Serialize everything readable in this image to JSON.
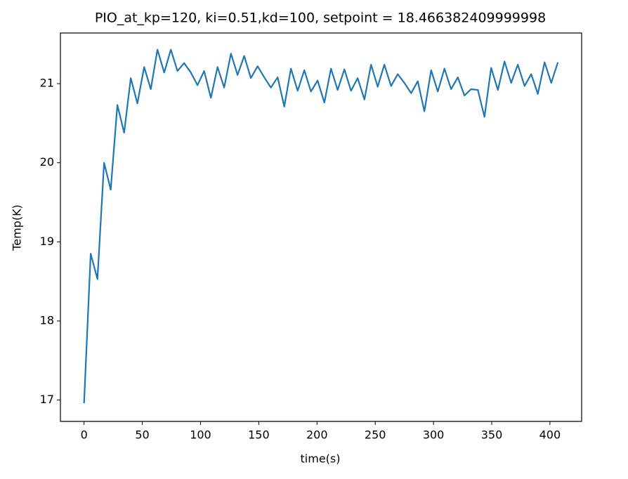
{
  "chart_data": {
    "type": "line",
    "title": "PIO_at_kp=120, ki=0.51,kd=100, setpoint = 18.466382409999998",
    "x_label": "time(s)",
    "y_label": "Temp(K)",
    "x": [
      0,
      5.7,
      11.5,
      17.2,
      22.9,
      28.6,
      34.4,
      40.1,
      45.8,
      51.6,
      57.3,
      63.0,
      68.8,
      74.5,
      80.2,
      85.9,
      91.7,
      97.4,
      103.1,
      108.9,
      114.6,
      120.3,
      126.1,
      131.8,
      137.5,
      143.2,
      149.0,
      154.7,
      160.4,
      166.2,
      171.9,
      177.6,
      183.4,
      189.1,
      194.8,
      200.5,
      206.3,
      212.0,
      217.7,
      223.5,
      229.2,
      234.9,
      240.7,
      246.4,
      252.1,
      257.8,
      263.6,
      269.3,
      275.0,
      280.8,
      286.5,
      292.2,
      298.0,
      303.7,
      309.4,
      315.1,
      320.9,
      326.6,
      332.3,
      338.1,
      343.8,
      349.5,
      355.3,
      361.0,
      366.7,
      372.4,
      378.2,
      383.9,
      389.6,
      395.4,
      401.1,
      406.8
    ],
    "series": [
      {
        "color": "#1f77b4",
        "values": [
          16.96,
          18.85,
          18.53,
          20.0,
          19.66,
          20.73,
          20.38,
          21.07,
          20.75,
          21.21,
          20.93,
          21.43,
          21.14,
          21.43,
          21.16,
          21.26,
          21.14,
          20.98,
          21.16,
          20.82,
          21.21,
          20.95,
          21.38,
          21.11,
          21.35,
          21.07,
          21.22,
          21.08,
          20.95,
          21.08,
          20.71,
          21.19,
          20.91,
          21.17,
          20.9,
          21.04,
          20.76,
          21.19,
          20.92,
          21.18,
          20.91,
          21.07,
          20.8,
          21.24,
          20.96,
          21.24,
          20.97,
          21.12,
          21.01,
          20.88,
          21.03,
          20.65,
          21.17,
          20.9,
          21.19,
          20.93,
          21.08,
          20.85,
          20.93,
          20.92,
          20.58,
          21.2,
          20.92,
          21.28,
          21.01,
          21.24,
          20.97,
          21.12,
          20.87,
          21.27,
          21.01,
          21.27
        ]
      }
    ],
    "xlim": [
      -20.3,
      427.2
    ],
    "ylim": [
      16.73,
      21.64
    ],
    "xticks": [
      0,
      50,
      100,
      150,
      200,
      250,
      300,
      350,
      400
    ],
    "yticks": [
      17,
      18,
      19,
      20,
      21
    ]
  }
}
